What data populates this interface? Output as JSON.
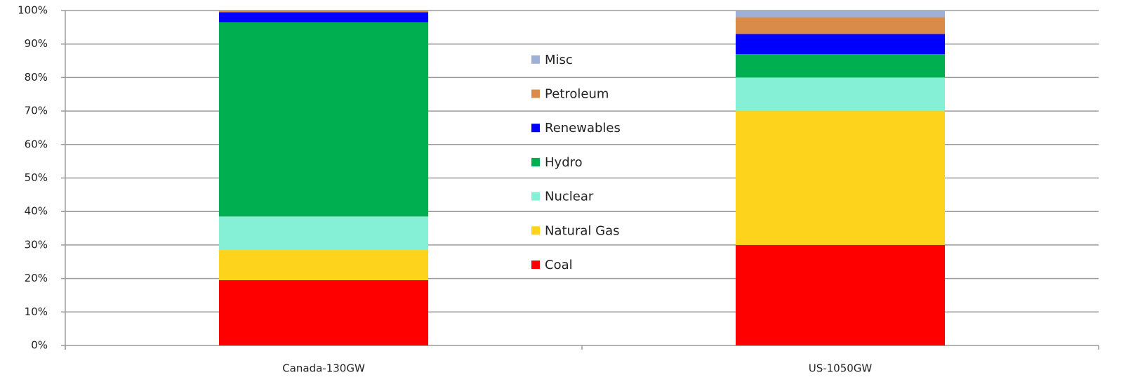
{
  "chart_data": {
    "type": "stacked_bar",
    "categories": [
      "Canada-130GW",
      "US-1050GW"
    ],
    "series": [
      {
        "name": "Coal",
        "color": "#ff0000",
        "values": [
          19.5,
          30
        ]
      },
      {
        "name": "Natural Gas",
        "color": "#fdd31c",
        "values": [
          9,
          40
        ]
      },
      {
        "name": "Nuclear",
        "color": "#86f0d6",
        "values": [
          10,
          10
        ]
      },
      {
        "name": "Hydro",
        "color": "#00b050",
        "values": [
          58,
          7
        ]
      },
      {
        "name": "Renewables",
        "color": "#0000ff",
        "values": [
          3,
          6
        ]
      },
      {
        "name": "Petroleum",
        "color": "#d98b4a",
        "values": [
          0.5,
          5
        ]
      },
      {
        "name": "Misc",
        "color": "#9fb0d6",
        "values": [
          0,
          2
        ]
      }
    ],
    "ylim": [
      0,
      100
    ],
    "yticks": [
      {
        "value": 0,
        "label": "0%"
      },
      {
        "value": 10,
        "label": "10%"
      },
      {
        "value": 20,
        "label": "20%"
      },
      {
        "value": 30,
        "label": "30%"
      },
      {
        "value": 40,
        "label": "40%"
      },
      {
        "value": 50,
        "label": "50%"
      },
      {
        "value": 60,
        "label": "60%"
      },
      {
        "value": 70,
        "label": "70%"
      },
      {
        "value": 80,
        "label": "80%"
      },
      {
        "value": 90,
        "label": "90%"
      },
      {
        "value": 100,
        "label": "100%"
      }
    ],
    "grid": true,
    "legend": "center"
  }
}
